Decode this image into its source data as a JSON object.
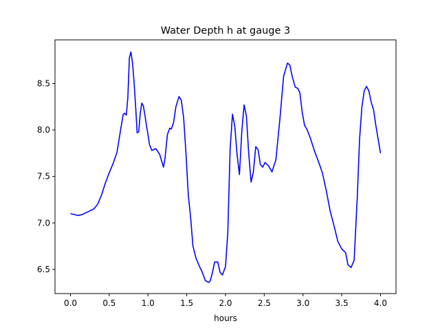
{
  "chart_data": {
    "type": "line",
    "title": "Water Depth h at gauge 3",
    "xlabel": "hours",
    "ylabel": "",
    "xlim": [
      -0.2,
      4.2
    ],
    "ylim": [
      6.24,
      8.97
    ],
    "xticks": [
      0.0,
      0.5,
      1.0,
      1.5,
      2.0,
      2.5,
      3.0,
      3.5,
      4.0
    ],
    "xtick_labels": [
      "0.0",
      "0.5",
      "1.0",
      "1.5",
      "2.0",
      "2.5",
      "3.0",
      "3.5",
      "4.0"
    ],
    "yticks": [
      6.5,
      7.0,
      7.5,
      8.0,
      8.5
    ],
    "ytick_labels": [
      "6.5",
      "7.0",
      "7.5",
      "8.0",
      "8.5"
    ],
    "grid": false,
    "series": [
      {
        "color": "#0000ff",
        "x": [
          0.0,
          0.05,
          0.1,
          0.15,
          0.2,
          0.25,
          0.3,
          0.35,
          0.4,
          0.45,
          0.5,
          0.55,
          0.6,
          0.65,
          0.68,
          0.7,
          0.72,
          0.74,
          0.76,
          0.78,
          0.8,
          0.82,
          0.84,
          0.86,
          0.88,
          0.9,
          0.92,
          0.94,
          0.96,
          0.98,
          1.0,
          1.02,
          1.05,
          1.1,
          1.15,
          1.2,
          1.22,
          1.25,
          1.28,
          1.3,
          1.33,
          1.36,
          1.4,
          1.43,
          1.46,
          1.49,
          1.52,
          1.55,
          1.58,
          1.62,
          1.66,
          1.7,
          1.74,
          1.78,
          1.8,
          1.83,
          1.86,
          1.9,
          1.93,
          1.96,
          2.0,
          2.03,
          2.06,
          2.09,
          2.12,
          2.15,
          2.18,
          2.21,
          2.24,
          2.27,
          2.3,
          2.33,
          2.36,
          2.39,
          2.42,
          2.45,
          2.48,
          2.51,
          2.55,
          2.6,
          2.65,
          2.7,
          2.75,
          2.8,
          2.83,
          2.86,
          2.9,
          2.93,
          2.96,
          2.99,
          3.02,
          3.05,
          3.1,
          3.15,
          3.2,
          3.25,
          3.3,
          3.35,
          3.4,
          3.45,
          3.5,
          3.55,
          3.58,
          3.62,
          3.66,
          3.7,
          3.73,
          3.76,
          3.79,
          3.82,
          3.85,
          3.88,
          3.91,
          3.94,
          3.97,
          4.0
        ],
        "y": [
          7.1,
          7.09,
          7.08,
          7.09,
          7.11,
          7.13,
          7.15,
          7.2,
          7.3,
          7.43,
          7.54,
          7.64,
          7.76,
          8.02,
          8.17,
          8.18,
          8.16,
          8.35,
          8.78,
          8.84,
          8.72,
          8.52,
          8.26,
          7.97,
          7.98,
          8.18,
          8.29,
          8.26,
          8.16,
          8.05,
          7.95,
          7.84,
          7.78,
          7.8,
          7.74,
          7.6,
          7.7,
          7.95,
          8.02,
          8.01,
          8.08,
          8.25,
          8.36,
          8.32,
          8.13,
          7.75,
          7.3,
          7.06,
          6.75,
          6.62,
          6.54,
          6.47,
          6.38,
          6.36,
          6.37,
          6.46,
          6.58,
          6.58,
          6.47,
          6.44,
          6.53,
          6.9,
          7.8,
          8.17,
          8.04,
          7.73,
          7.52,
          7.98,
          8.27,
          8.15,
          7.74,
          7.44,
          7.55,
          7.82,
          7.79,
          7.63,
          7.6,
          7.65,
          7.62,
          7.55,
          7.68,
          8.1,
          8.58,
          8.72,
          8.7,
          8.58,
          8.46,
          8.45,
          8.4,
          8.19,
          8.05,
          8.01,
          7.9,
          7.77,
          7.66,
          7.54,
          7.35,
          7.13,
          6.97,
          6.8,
          6.72,
          6.68,
          6.55,
          6.52,
          6.6,
          7.27,
          7.9,
          8.25,
          8.42,
          8.47,
          8.42,
          8.3,
          8.22,
          8.05,
          7.9,
          7.75
        ]
      }
    ]
  }
}
